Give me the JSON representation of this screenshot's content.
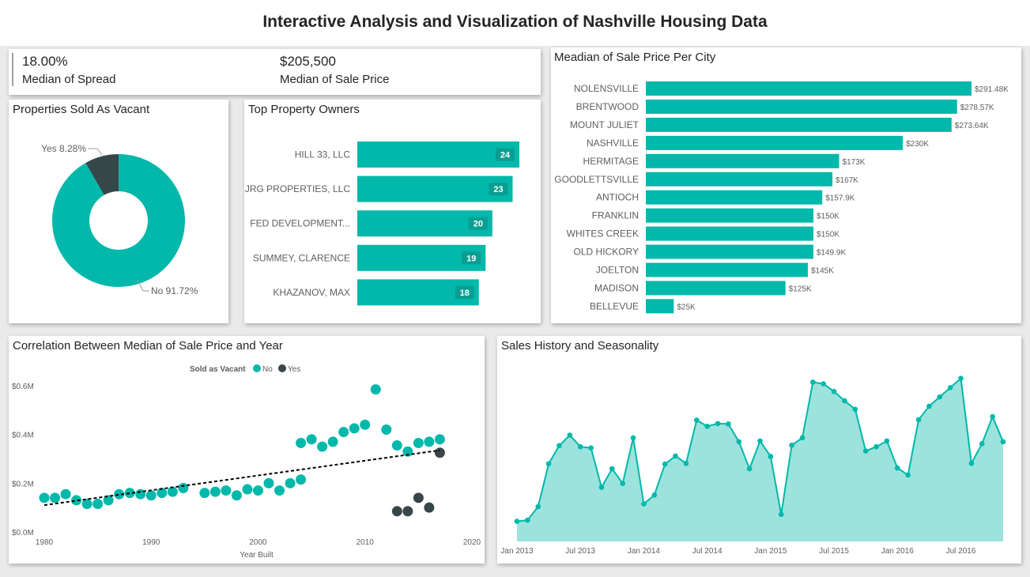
{
  "header": {
    "title": "Interactive Analysis and Visualization of Nashville Housing Data"
  },
  "kpis": {
    "spread": {
      "value": "18.00%",
      "label": "Median of Spread"
    },
    "sale_price": {
      "value": "$205,500",
      "label": "Median of Sale Price"
    }
  },
  "titles": {
    "vacant": "Properties Sold As Vacant",
    "owners": "Top Property Owners",
    "city": "Meadian of Sale Price Per City",
    "correlation": "Correlation Between Median of Sale Price and Year",
    "history": "Sales History and Seasonality"
  },
  "colors": {
    "teal": "#01B8AA",
    "dark": "#374649",
    "area_fill": "#9BE3DC"
  },
  "chart_data": [
    {
      "id": "vacant",
      "type": "pie",
      "variant": "donut",
      "slices": [
        {
          "label": "No",
          "value": 91.72,
          "display": "No 91.72%",
          "color": "#01B8AA"
        },
        {
          "label": "Yes",
          "value": 8.28,
          "display": "Yes 8.28%",
          "color": "#374649"
        }
      ]
    },
    {
      "id": "owners",
      "type": "bar",
      "orientation": "horizontal",
      "categories": [
        "HILL 33, LLC",
        "JRG PROPERTIES, LLC",
        "FED DEVELOPMENT...",
        "SUMMEY, CLARENCE",
        "KHAZANOV, MAX"
      ],
      "values": [
        24,
        23,
        20,
        19,
        18
      ],
      "labels": [
        "24",
        "23",
        "20",
        "19",
        "18"
      ]
    },
    {
      "id": "city",
      "type": "bar",
      "orientation": "horizontal",
      "categories": [
        "NOLENSVILLE",
        "BRENTWOOD",
        "MOUNT JULIET",
        "NASHVILLE",
        "HERMITAGE",
        "GOODLETTSVILLE",
        "ANTIOCH",
        "FRANKLIN",
        "WHITES CREEK",
        "OLD HICKORY",
        "JOELTON",
        "MADISON",
        "BELLEVUE"
      ],
      "values": [
        291.48,
        278.57,
        273.64,
        230,
        173,
        167,
        157.9,
        150,
        150,
        149.9,
        145,
        125,
        25
      ],
      "labels": [
        "$291.48K",
        "$278.57K",
        "$273.64K",
        "$230K",
        "$173K",
        "$167K",
        "$157.9K",
        "$150K",
        "$150K",
        "$149.9K",
        "$145K",
        "$125K",
        "$25K"
      ]
    },
    {
      "id": "correlation",
      "type": "scatter",
      "xlabel": "Year Built",
      "ylabel": "",
      "xlim": [
        1980,
        2020
      ],
      "ylim": [
        0,
        0.6
      ],
      "x_ticks": [
        "1980",
        "1990",
        "2000",
        "2010",
        "2020"
      ],
      "y_ticks": [
        "$0.0M",
        "$0.2M",
        "$0.4M",
        "$0.6M"
      ],
      "legend": {
        "title": "Sold as Vacant",
        "position": "top-center"
      },
      "trendline": {
        "x": [
          1980,
          2017
        ],
        "y": [
          0.11,
          0.335
        ]
      },
      "series": [
        {
          "name": "No",
          "color": "#01B8AA",
          "points": [
            [
              1980,
              0.14
            ],
            [
              1981,
              0.14
            ],
            [
              1982,
              0.155
            ],
            [
              1983,
              0.13
            ],
            [
              1984,
              0.115
            ],
            [
              1985,
              0.115
            ],
            [
              1986,
              0.13
            ],
            [
              1987,
              0.155
            ],
            [
              1988,
              0.16
            ],
            [
              1989,
              0.155
            ],
            [
              1990,
              0.15
            ],
            [
              1991,
              0.16
            ],
            [
              1992,
              0.165
            ],
            [
              1993,
              0.18
            ],
            [
              1995,
              0.16
            ],
            [
              1996,
              0.165
            ],
            [
              1997,
              0.17
            ],
            [
              1998,
              0.15
            ],
            [
              1999,
              0.175
            ],
            [
              2000,
              0.17
            ],
            [
              2001,
              0.2
            ],
            [
              2002,
              0.17
            ],
            [
              2003,
              0.2
            ],
            [
              2004,
              0.215
            ],
            [
              2004,
              0.365
            ],
            [
              2005,
              0.38
            ],
            [
              2006,
              0.35
            ],
            [
              2007,
              0.37
            ],
            [
              2008,
              0.41
            ],
            [
              2009,
              0.425
            ],
            [
              2010,
              0.44
            ],
            [
              2011,
              0.585
            ],
            [
              2012,
              0.42
            ],
            [
              2013,
              0.355
            ],
            [
              2014,
              0.33
            ],
            [
              2015,
              0.365
            ],
            [
              2016,
              0.37
            ],
            [
              2017,
              0.38
            ]
          ]
        },
        {
          "name": "Yes",
          "color": "#374649",
          "points": [
            [
              2013,
              0.085
            ],
            [
              2014,
              0.085
            ],
            [
              2015,
              0.14
            ],
            [
              2016,
              0.1
            ],
            [
              2017,
              0.325
            ]
          ]
        }
      ]
    },
    {
      "id": "history",
      "type": "area",
      "x_ticks": [
        "Jan 2013",
        "Jul 2013",
        "Jan 2014",
        "Jul 2014",
        "Jan 2015",
        "Jul 2015",
        "Jan 2016",
        "Jul 2016"
      ],
      "ylim": [
        0,
        4.5
      ],
      "values": [
        0.52,
        0.55,
        0.9,
        2.01,
        2.48,
        2.75,
        2.45,
        2.42,
        1.4,
        1.88,
        1.5,
        2.68,
        0.97,
        1.2,
        2.0,
        2.21,
        2.02,
        3.14,
        2.98,
        3.05,
        3.04,
        2.58,
        1.88,
        2.6,
        2.2,
        0.7,
        2.49,
        2.68,
        4.12,
        4.08,
        3.88,
        3.64,
        3.42,
        2.34,
        2.45,
        2.6,
        1.9,
        1.72,
        3.15,
        3.5,
        3.74,
        3.98,
        4.22,
        2.02,
        2.53,
        3.23,
        2.58
      ]
    }
  ]
}
